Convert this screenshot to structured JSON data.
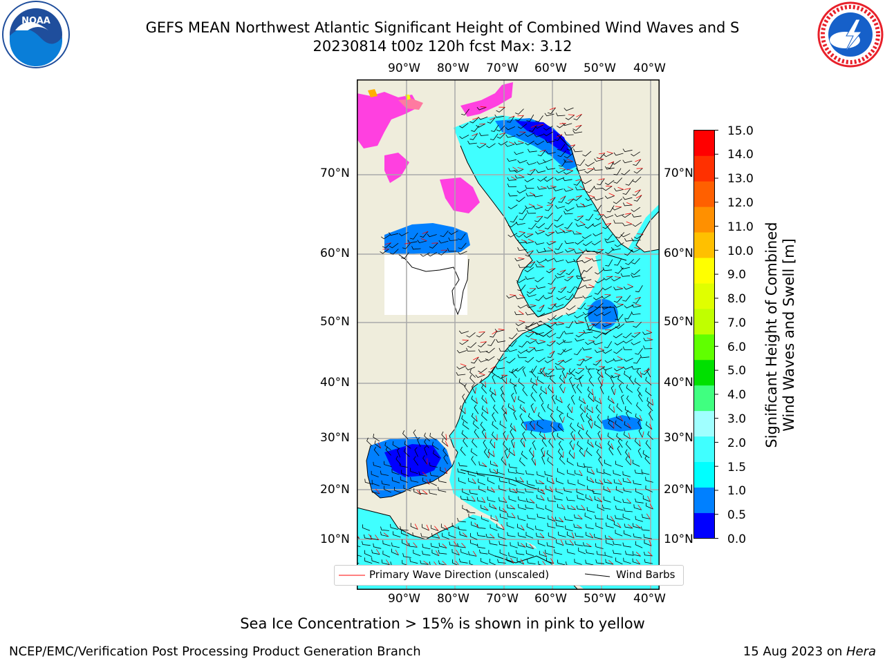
{
  "header": {
    "title_line1": "GEFS MEAN Northwest Atlantic Significant Height of Combined Wind Waves and S",
    "title_line2": "20230814 t00z 120h fcst   Max: 3.12"
  },
  "logos": {
    "left": {
      "icon": "noaa-logo-icon",
      "text": "NOAA",
      "colors": {
        "ring": "#ffffff",
        "sky": "#1f4e9c",
        "sea": "#0a7ed8"
      }
    },
    "right": {
      "icon": "nws-logo-icon",
      "ring_text": "NATIONAL WEATHER SERVICE",
      "colors": {
        "ring": "#e8202a",
        "disk": "#1660c9"
      }
    }
  },
  "map": {
    "lon_labels": [
      "90°W",
      "80°W",
      "70°W",
      "60°W",
      "50°W",
      "40°W"
    ],
    "lat_labels": [
      "70°N",
      "60°N",
      "50°N",
      "40°N",
      "30°N",
      "20°N",
      "10°N"
    ],
    "colors": {
      "land": "#efeddc",
      "frame": "#000000",
      "grid": "#a9a9a9",
      "nodata": "#ffffff"
    }
  },
  "legend": {
    "wave_label": "Primary Wave Direction (unscaled)",
    "barb_label": "Wind Barbs",
    "wave_color": "#ff0000",
    "barb_color": "#000000"
  },
  "colorbar": {
    "label_line1": "Significant Height of Combined",
    "label_line2": "Wind Waves and Swell [m]",
    "ticks": [
      "15.0",
      "14.0",
      "13.0",
      "12.0",
      "11.0",
      "10.0",
      "9.0",
      "8.0",
      "7.0",
      "6.0",
      "5.0",
      "4.0",
      "3.0",
      "2.0",
      "1.5",
      "1.0",
      "0.5",
      "0.0"
    ],
    "colors_bottom_to_top": [
      "#0000ff",
      "#0080ff",
      "#00ffff",
      "#40ffff",
      "#a0ffff",
      "#40ff80",
      "#00e000",
      "#60ff00",
      "#c0ff00",
      "#e0ff00",
      "#ffff00",
      "#ffc000",
      "#ff9000",
      "#ff6000",
      "#ff3000",
      "#ff0000"
    ]
  },
  "notes": {
    "sea_ice": "Sea Ice Concentration > 15% is shown in pink to yellow"
  },
  "footer": {
    "left": "NCEP/EMC/Verification Post Processing Product Generation Branch",
    "right_date": "15 Aug 2023 on ",
    "right_machine": "Hera"
  }
}
